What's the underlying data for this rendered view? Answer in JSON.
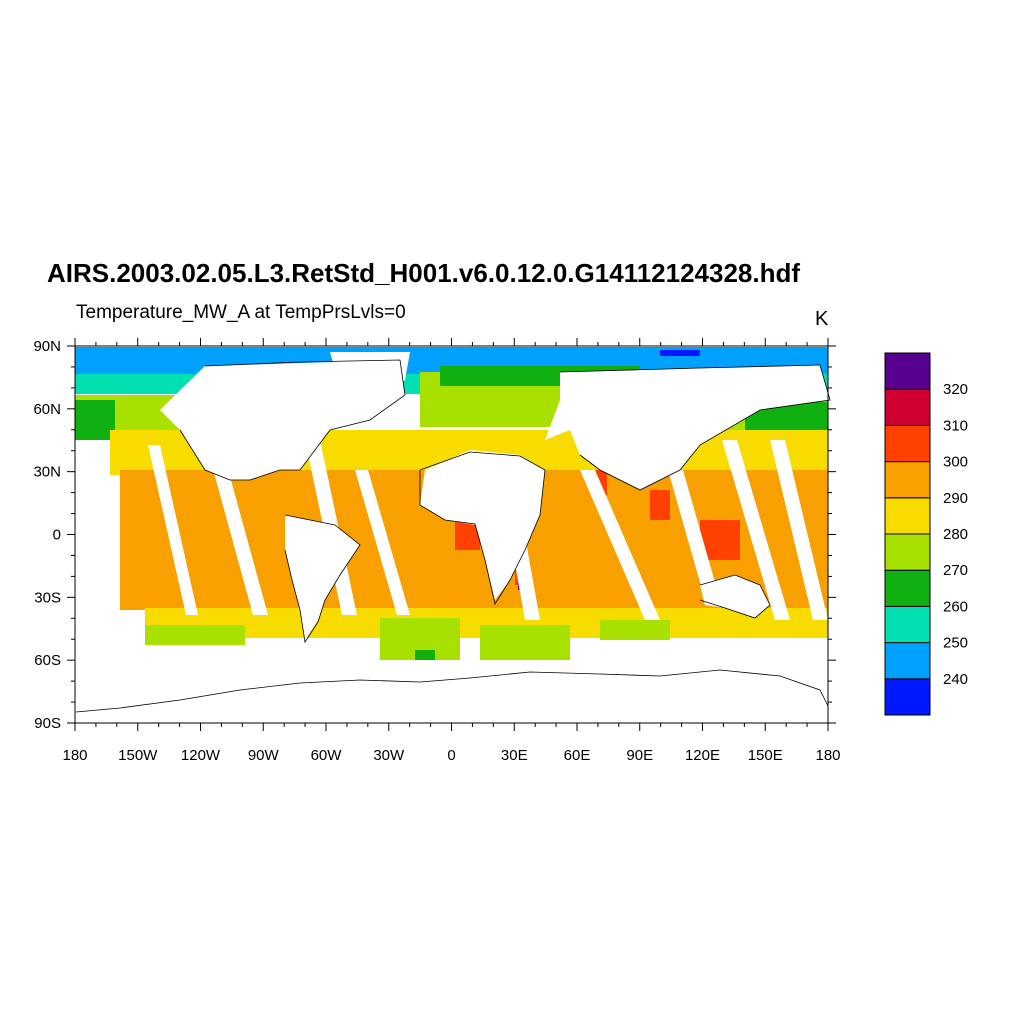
{
  "title": "AIRS.2003.02.05.L3.RetStd_H001.v6.0.12.0.G14112124328.hdf",
  "subtitle": "Temperature_MW_A at TempPrsLvls=0",
  "units": "K",
  "map": {
    "projection": "cylindrical-equidistant",
    "lon_range": [
      -180,
      180
    ],
    "lat_range": [
      -90,
      90
    ],
    "lon_ticks": [
      {
        "value": -180,
        "label": "180"
      },
      {
        "value": -150,
        "label": "150W"
      },
      {
        "value": -120,
        "label": "120W"
      },
      {
        "value": -90,
        "label": "90W"
      },
      {
        "value": -60,
        "label": "60W"
      },
      {
        "value": -30,
        "label": "30W"
      },
      {
        "value": 0,
        "label": "0"
      },
      {
        "value": 30,
        "label": "30E"
      },
      {
        "value": 60,
        "label": "60E"
      },
      {
        "value": 90,
        "label": "90E"
      },
      {
        "value": 120,
        "label": "120E"
      },
      {
        "value": 150,
        "label": "150E"
      },
      {
        "value": 180,
        "label": "180"
      }
    ],
    "lat_ticks": [
      {
        "value": 90,
        "label": "90N"
      },
      {
        "value": 60,
        "label": "60N"
      },
      {
        "value": 30,
        "label": "30N"
      },
      {
        "value": 0,
        "label": "0"
      },
      {
        "value": -30,
        "label": "30S"
      },
      {
        "value": -60,
        "label": "60S"
      },
      {
        "value": -90,
        "label": "90S"
      }
    ]
  },
  "colorbar": {
    "levels": [
      {
        "color": "#0018ff",
        "label": "240"
      },
      {
        "color": "#00a0ff",
        "label": "250"
      },
      {
        "color": "#00e0b0",
        "label": "260"
      },
      {
        "color": "#10b010",
        "label": "270"
      },
      {
        "color": "#a8e000",
        "label": "280"
      },
      {
        "color": "#f8dc00",
        "label": "290"
      },
      {
        "color": "#f8a000",
        "label": "300"
      },
      {
        "color": "#ff4000",
        "label": "310"
      },
      {
        "color": "#d00030",
        "label": "320"
      },
      {
        "color": "#580090",
        "label": ""
      }
    ]
  }
}
